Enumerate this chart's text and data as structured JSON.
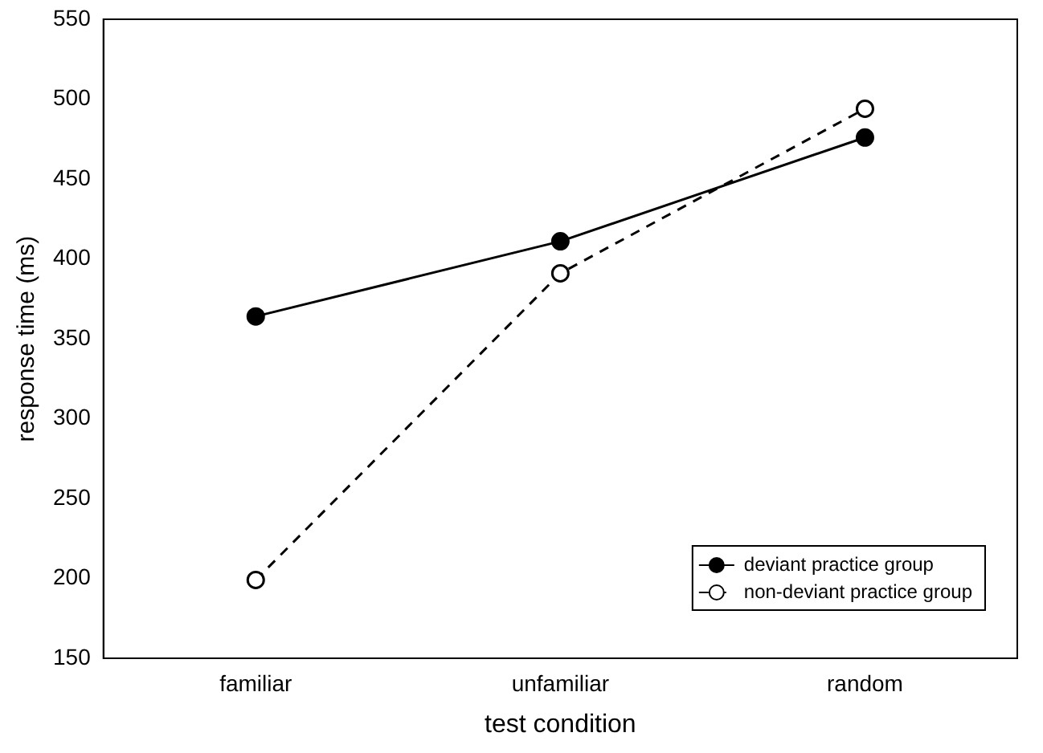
{
  "chart_data": {
    "type": "line",
    "xlabel": "test condition",
    "ylabel": "response time (ms)",
    "categories": [
      "familiar",
      "unfamiliar",
      "random"
    ],
    "series": [
      {
        "name": "deviant practice group",
        "color": "#000000",
        "values": [
          364,
          411,
          476
        ],
        "line_style": "solid"
      },
      {
        "name": "non-deviant practice group",
        "color": "#000000",
        "values": [
          199,
          391,
          494
        ],
        "line_style": "dashed"
      }
    ],
    "ylim": [
      150,
      550
    ],
    "yticks": [
      150,
      200,
      250,
      300,
      350,
      400,
      450,
      500,
      550
    ],
    "grid": false,
    "legend": "bottom right",
    "marker": "circle"
  }
}
